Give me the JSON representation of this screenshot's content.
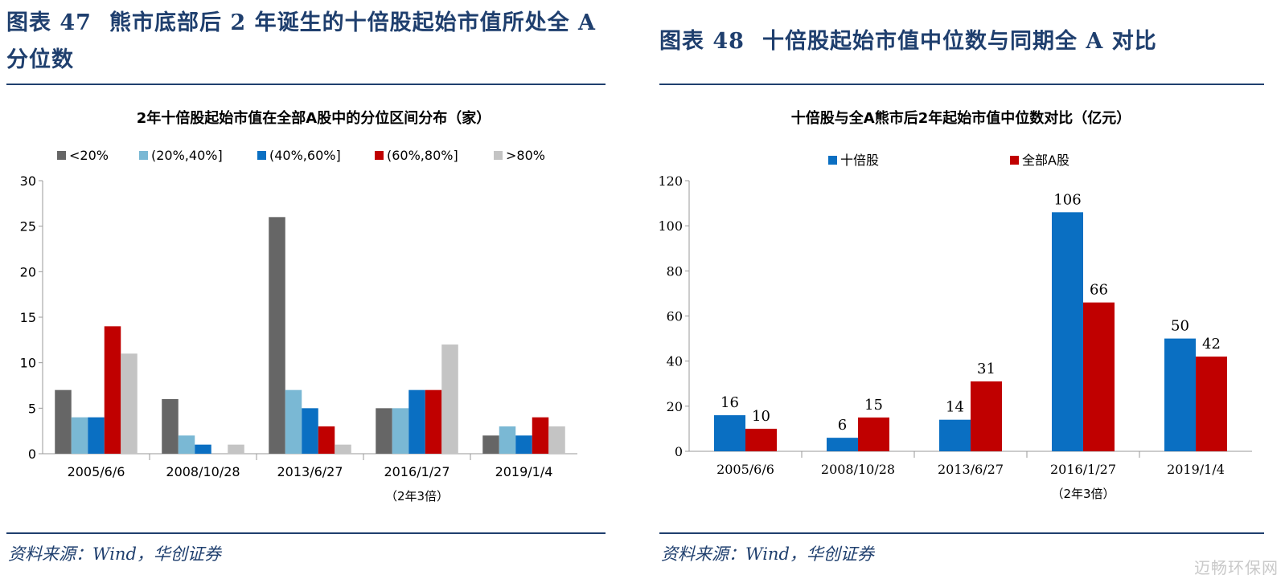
{
  "left": {
    "figure_no": "图表 47",
    "figure_title": "熊市底部后 2 年诞生的十倍股起始市值所处全 A 分位数",
    "source": "资料来源：Wind，华创证券"
  },
  "right": {
    "figure_no": "图表 48",
    "figure_title": "十倍股起始市值中位数与同期全 A 对比",
    "source": "资料来源：Wind，华创证券"
  },
  "watermark": "迈畅环保网",
  "chart_data": [
    {
      "type": "bar",
      "title": "2年十倍股起始市值在全部A股中的分位区间分布（家）",
      "categories": [
        "2005/6/6",
        "2008/10/28",
        "2013/6/27",
        "2016/1/27",
        "2019/1/4"
      ],
      "category_note": "（2年3倍）",
      "category_note_index": 3,
      "series": [
        {
          "name": "<20%",
          "color": "#666666",
          "values": [
            7,
            6,
            26,
            5,
            2
          ]
        },
        {
          "name": "(20%,40%]",
          "color": "#7ab8d4",
          "values": [
            4,
            2,
            7,
            5,
            3
          ]
        },
        {
          "name": "(40%,60%]",
          "color": "#0a6fc2",
          "values": [
            4,
            1,
            5,
            7,
            2
          ]
        },
        {
          "name": "(60%,80%]",
          "color": "#c00000",
          "values": [
            14,
            0,
            3,
            7,
            4
          ]
        },
        {
          "name": ">80%",
          "color": "#c4c4c4",
          "values": [
            11,
            1,
            1,
            12,
            3
          ]
        }
      ],
      "ylim": [
        0,
        30
      ],
      "yticks": [
        0,
        5,
        10,
        15,
        20,
        25,
        30
      ],
      "legend": "top",
      "grid": false
    },
    {
      "type": "bar",
      "title": "十倍股与全A熊市后2年起始市值中位数对比（亿元）",
      "categories": [
        "2005/6/6",
        "2008/10/28",
        "2013/6/27",
        "2016/1/27",
        "2019/1/4"
      ],
      "category_note": "（2年3倍）",
      "category_note_index": 3,
      "series": [
        {
          "name": "十倍股",
          "color": "#0a6fc2",
          "values": [
            16,
            6,
            14,
            106,
            50
          ]
        },
        {
          "name": "全部A股",
          "color": "#c00000",
          "values": [
            10,
            15,
            31,
            66,
            42
          ]
        }
      ],
      "ylim": [
        0,
        120
      ],
      "yticks": [
        0,
        20,
        40,
        60,
        80,
        100,
        120
      ],
      "data_labels": true,
      "legend": "top",
      "grid": false
    }
  ]
}
